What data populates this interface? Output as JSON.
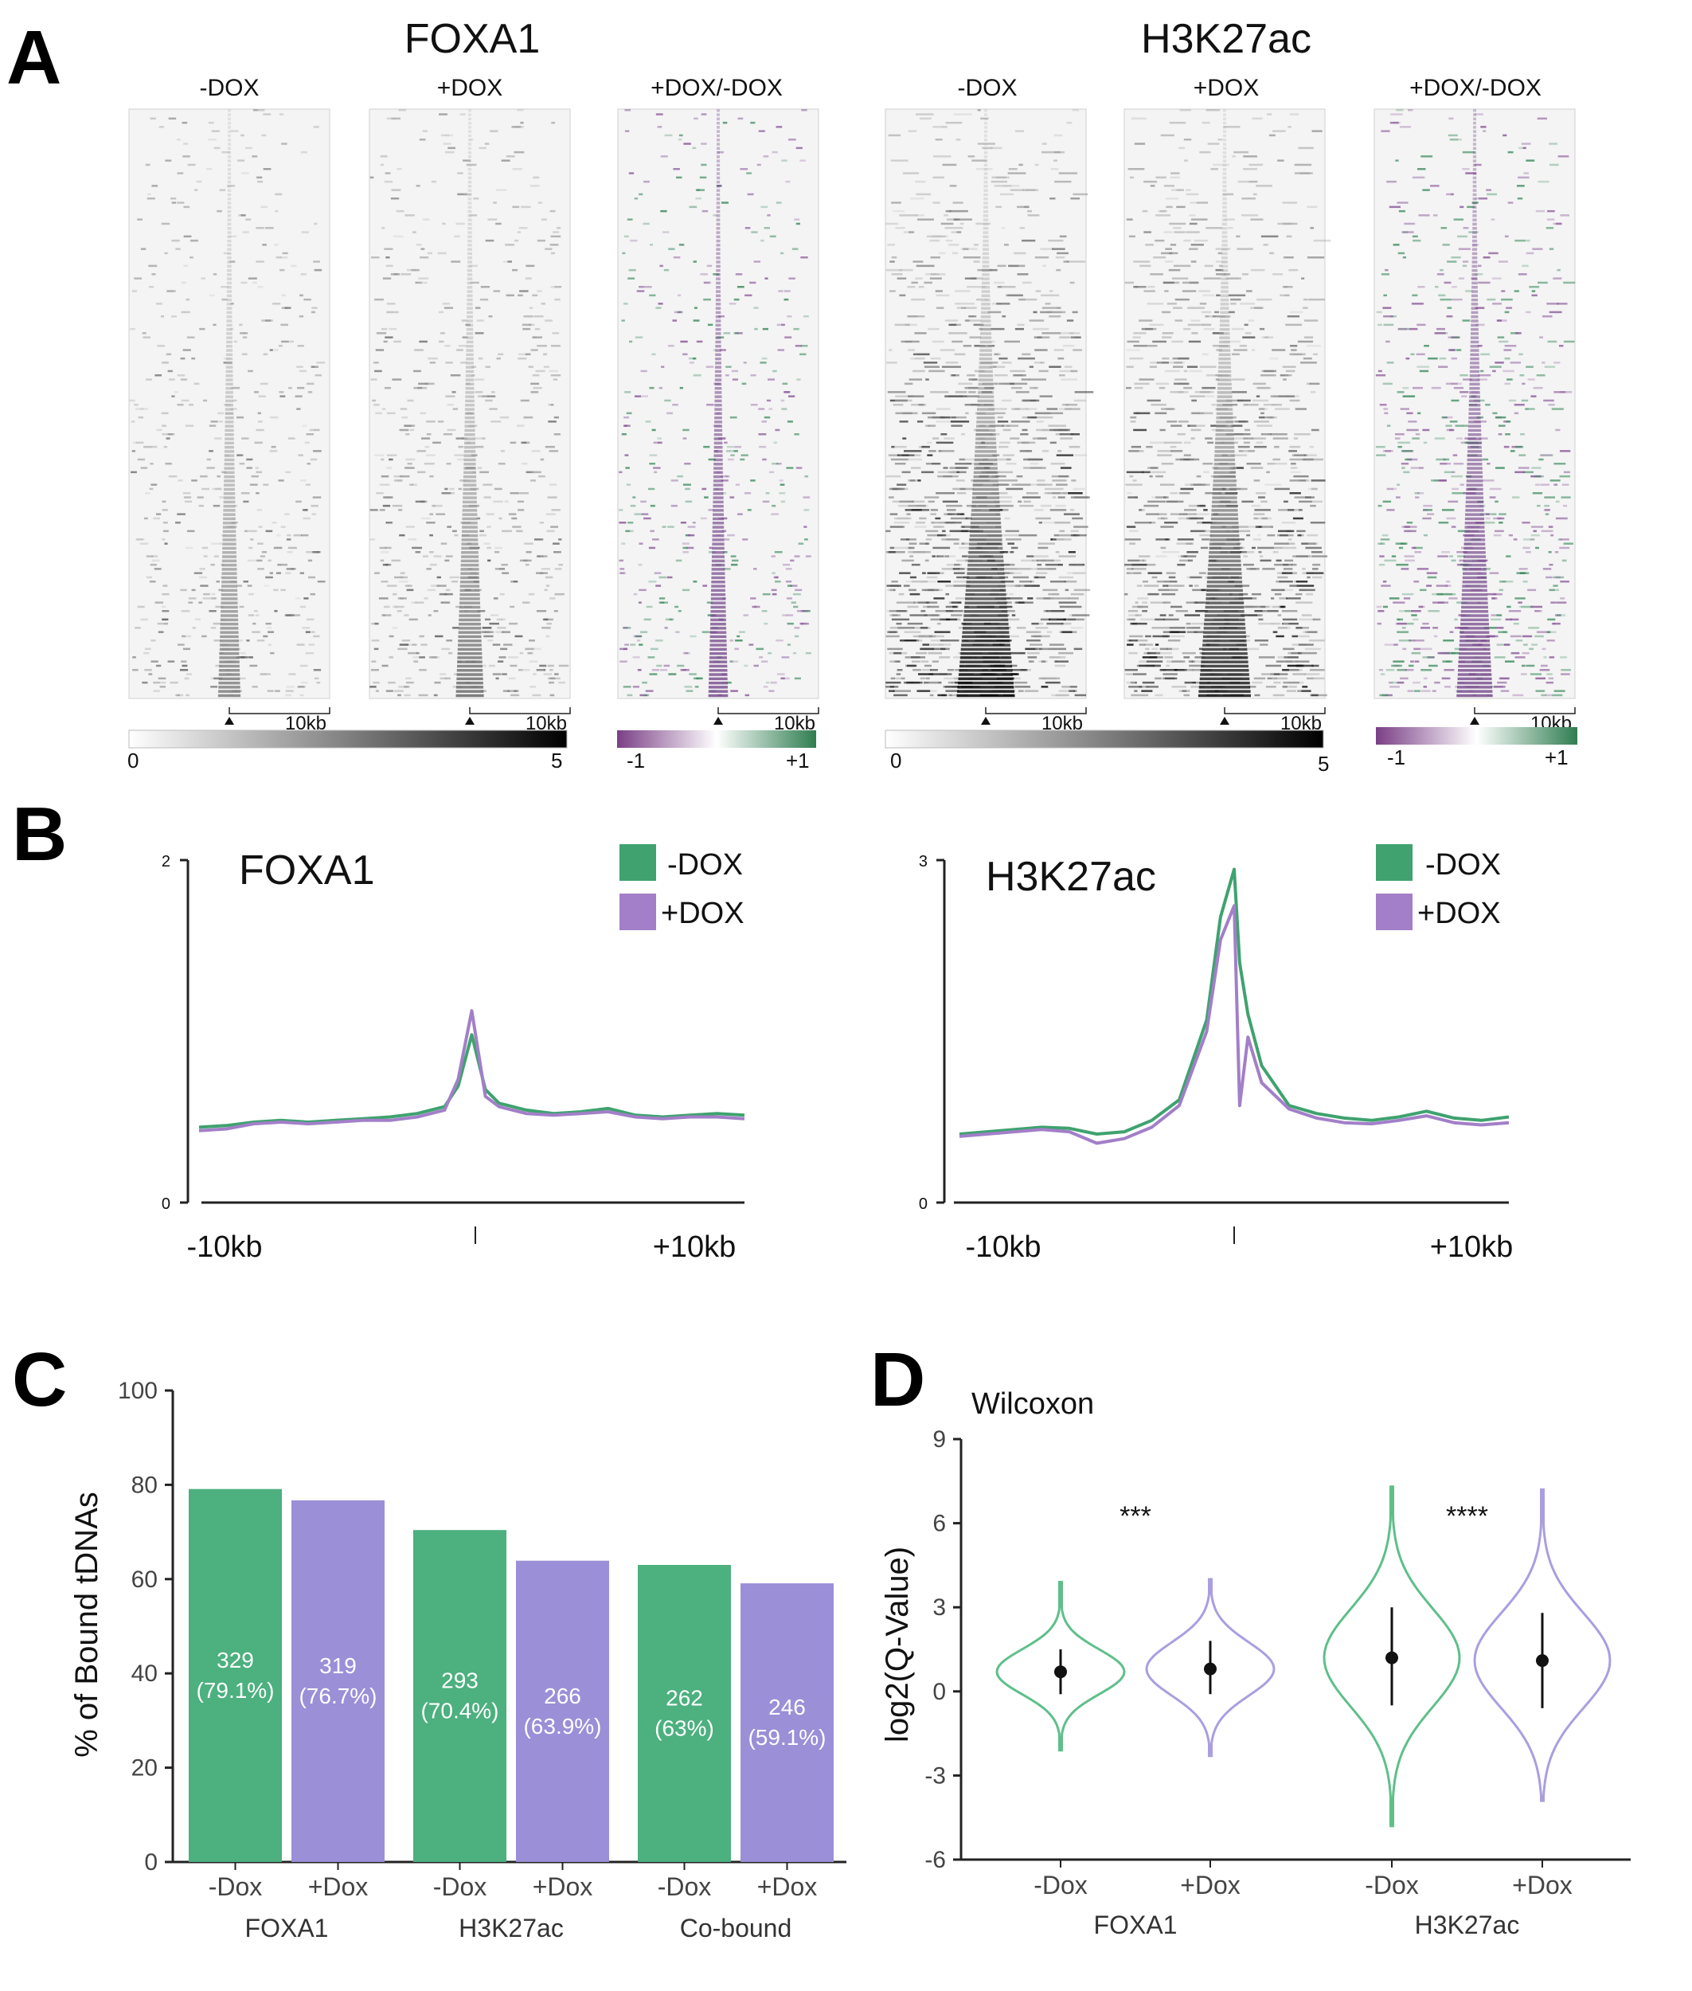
{
  "panel_labels": [
    "A",
    "B",
    "C",
    "D"
  ],
  "colors": {
    "green": "#3fa26f",
    "purple": "#a27fc8",
    "bar_green": "#4cb07f",
    "bar_purple": "#9b8fd8",
    "violin_green": "#5fbf8a",
    "violin_purple": "#ab9ee0",
    "diff_neg": "#7a3f86",
    "diff_pos": "#2f7d50",
    "text": "#222222"
  },
  "panelA": {
    "groups": [
      {
        "title": "FOXA1",
        "colorbar": {
          "min": "0",
          "max": "5"
        },
        "diff_colorbar": {
          "min": "-1",
          "max": "+1"
        }
      },
      {
        "title": "H3K27ac",
        "colorbar": {
          "min": "0",
          "max": "5"
        },
        "diff_colorbar": {
          "min": "-1",
          "max": "+1"
        }
      }
    ],
    "heatmap_titles": [
      "-DOX",
      "+DOX",
      "+DOX/-DOX",
      "-DOX",
      "+DOX",
      "+DOX/-DOX"
    ],
    "scale_label": "10kb"
  },
  "panelB": {
    "xlabels": {
      "left": "-10kb",
      "right": "+10kb"
    },
    "legend": [
      "-DOX",
      "+DOX"
    ]
  },
  "chart_data": [
    {
      "type": "line",
      "panel": "B-left",
      "title": "FOXA1",
      "ylim": [
        0,
        2
      ],
      "yticks": [
        "0",
        "2"
      ],
      "x": [
        -10,
        -9,
        -8,
        -7,
        -6,
        -5,
        -4,
        -3,
        -2,
        -1,
        -0.5,
        0,
        0.5,
        1,
        2,
        3,
        4,
        5,
        6,
        7,
        8,
        9,
        10
      ],
      "series": [
        {
          "name": "-DOX",
          "values": [
            0.44,
            0.45,
            0.47,
            0.48,
            0.47,
            0.48,
            0.49,
            0.5,
            0.52,
            0.56,
            0.68,
            0.98,
            0.66,
            0.58,
            0.54,
            0.52,
            0.53,
            0.55,
            0.51,
            0.5,
            0.51,
            0.52,
            0.51
          ]
        },
        {
          "name": "+DOX",
          "values": [
            0.42,
            0.43,
            0.46,
            0.47,
            0.46,
            0.47,
            0.48,
            0.48,
            0.5,
            0.54,
            0.72,
            1.12,
            0.62,
            0.56,
            0.52,
            0.51,
            0.52,
            0.53,
            0.5,
            0.49,
            0.5,
            0.5,
            0.49
          ]
        }
      ]
    },
    {
      "type": "line",
      "panel": "B-right",
      "title": "H3K27ac",
      "ylim": [
        0,
        3
      ],
      "yticks": [
        "0",
        "3"
      ],
      "x": [
        -10,
        -9,
        -8,
        -7,
        -6,
        -5,
        -4,
        -3,
        -2,
        -1,
        -0.5,
        0,
        0.2,
        0.5,
        1,
        2,
        3,
        4,
        5,
        6,
        7,
        8,
        9,
        10
      ],
      "series": [
        {
          "name": "-DOX",
          "values": [
            0.6,
            0.62,
            0.64,
            0.66,
            0.65,
            0.6,
            0.62,
            0.72,
            0.9,
            1.6,
            2.5,
            2.92,
            2.1,
            1.65,
            1.2,
            0.85,
            0.78,
            0.74,
            0.72,
            0.75,
            0.8,
            0.74,
            0.72,
            0.75
          ]
        },
        {
          "name": "+DOX",
          "values": [
            0.58,
            0.6,
            0.62,
            0.64,
            0.62,
            0.52,
            0.56,
            0.66,
            0.85,
            1.5,
            2.3,
            2.6,
            0.85,
            1.45,
            1.05,
            0.82,
            0.74,
            0.7,
            0.69,
            0.72,
            0.76,
            0.7,
            0.68,
            0.7
          ]
        }
      ]
    },
    {
      "type": "bar",
      "panel": "C",
      "ylabel": "% of Bound tDNAs",
      "ylim": [
        0,
        100
      ],
      "yticks": [
        "0",
        "20",
        "40",
        "60",
        "80",
        "100"
      ],
      "groups": [
        "FOXA1",
        "H3K27ac",
        "Co-bound"
      ],
      "categories": [
        "-Dox",
        "+Dox",
        "-Dox",
        "+Dox",
        "-Dox",
        "+Dox"
      ],
      "values": [
        79.1,
        76.7,
        70.4,
        63.9,
        63,
        59.1
      ],
      "counts": [
        "329",
        "319",
        "293",
        "266",
        "262",
        "246"
      ],
      "percent_labels": [
        "(79.1%)",
        "(76.7%)",
        "(70.4%)",
        "(63.9%)",
        "(63%)",
        "(59.1%)"
      ]
    },
    {
      "type": "violin",
      "panel": "D",
      "title": "Wilcoxon",
      "ylabel": "log2(Q-Value)",
      "ylim": [
        -6,
        9
      ],
      "yticks": [
        "-6",
        "-3",
        "0",
        "3",
        "6",
        "9"
      ],
      "groups": [
        "FOXA1",
        "H3K27ac"
      ],
      "categories": [
        "-Dox",
        "+Dox",
        "-Dox",
        "+Dox"
      ],
      "significance": [
        "***",
        "****"
      ],
      "series": [
        {
          "category": "-Dox",
          "group": "FOXA1",
          "median": 0.7,
          "q1": -0.1,
          "q3": 1.5,
          "min": -2.1,
          "max": 3.9
        },
        {
          "category": "+Dox",
          "group": "FOXA1",
          "median": 0.8,
          "q1": -0.1,
          "q3": 1.8,
          "min": -2.3,
          "max": 4.0
        },
        {
          "category": "-Dox",
          "group": "H3K27ac",
          "median": 1.2,
          "q1": -0.5,
          "q3": 3.0,
          "min": -4.8,
          "max": 7.3
        },
        {
          "category": "+Dox",
          "group": "H3K27ac",
          "median": 1.1,
          "q1": -0.6,
          "q3": 2.8,
          "min": -3.9,
          "max": 7.2
        }
      ]
    }
  ]
}
